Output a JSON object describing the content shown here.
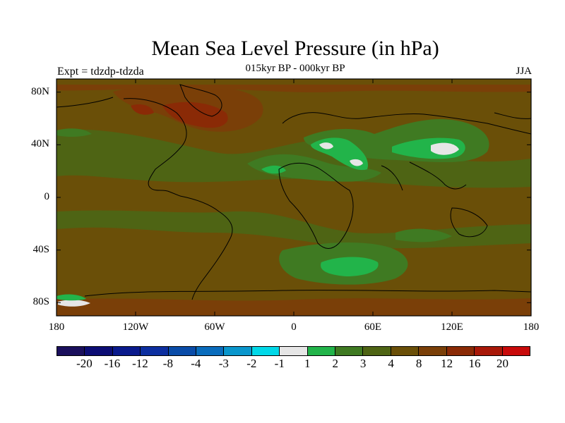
{
  "title": "Mean Sea Level Pressure (in hPa)",
  "subtitle": "015kyr BP - 000kyr BP",
  "expt_label": "Expt = tdzdp-tdzda",
  "season": "JJA",
  "axes": {
    "y_ticks": [
      {
        "label": "80N",
        "lat": 80
      },
      {
        "label": "40N",
        "lat": 40
      },
      {
        "label": "0",
        "lat": 0
      },
      {
        "label": "40S",
        "lat": -40
      },
      {
        "label": "80S",
        "lat": -80
      }
    ],
    "x_ticks": [
      {
        "label": "180",
        "lon": -180
      },
      {
        "label": "120W",
        "lon": -120
      },
      {
        "label": "60W",
        "lon": -60
      },
      {
        "label": "0",
        "lon": 0
      },
      {
        "label": "60E",
        "lon": 60
      },
      {
        "label": "120E",
        "lon": 120
      },
      {
        "label": "180",
        "lon": 180
      }
    ]
  },
  "colorbar": {
    "colors": [
      "#1a0f5c",
      "#0c0d74",
      "#0a1a8c",
      "#0d2fa0",
      "#0a4ca8",
      "#0a6cbc",
      "#0a96cc",
      "#00d8e8",
      "#e6e6e6",
      "#22b44a",
      "#3f7a22",
      "#4e6414",
      "#6a4f08",
      "#7a3f08",
      "#8a2a06",
      "#a81808",
      "#c80a0a"
    ],
    "labels": [
      "-20",
      "-16",
      "-12",
      "-8",
      "-4",
      "-3",
      "-2",
      "-1",
      "1",
      "2",
      "3",
      "4",
      "8",
      "12",
      "16",
      "20"
    ]
  }
}
